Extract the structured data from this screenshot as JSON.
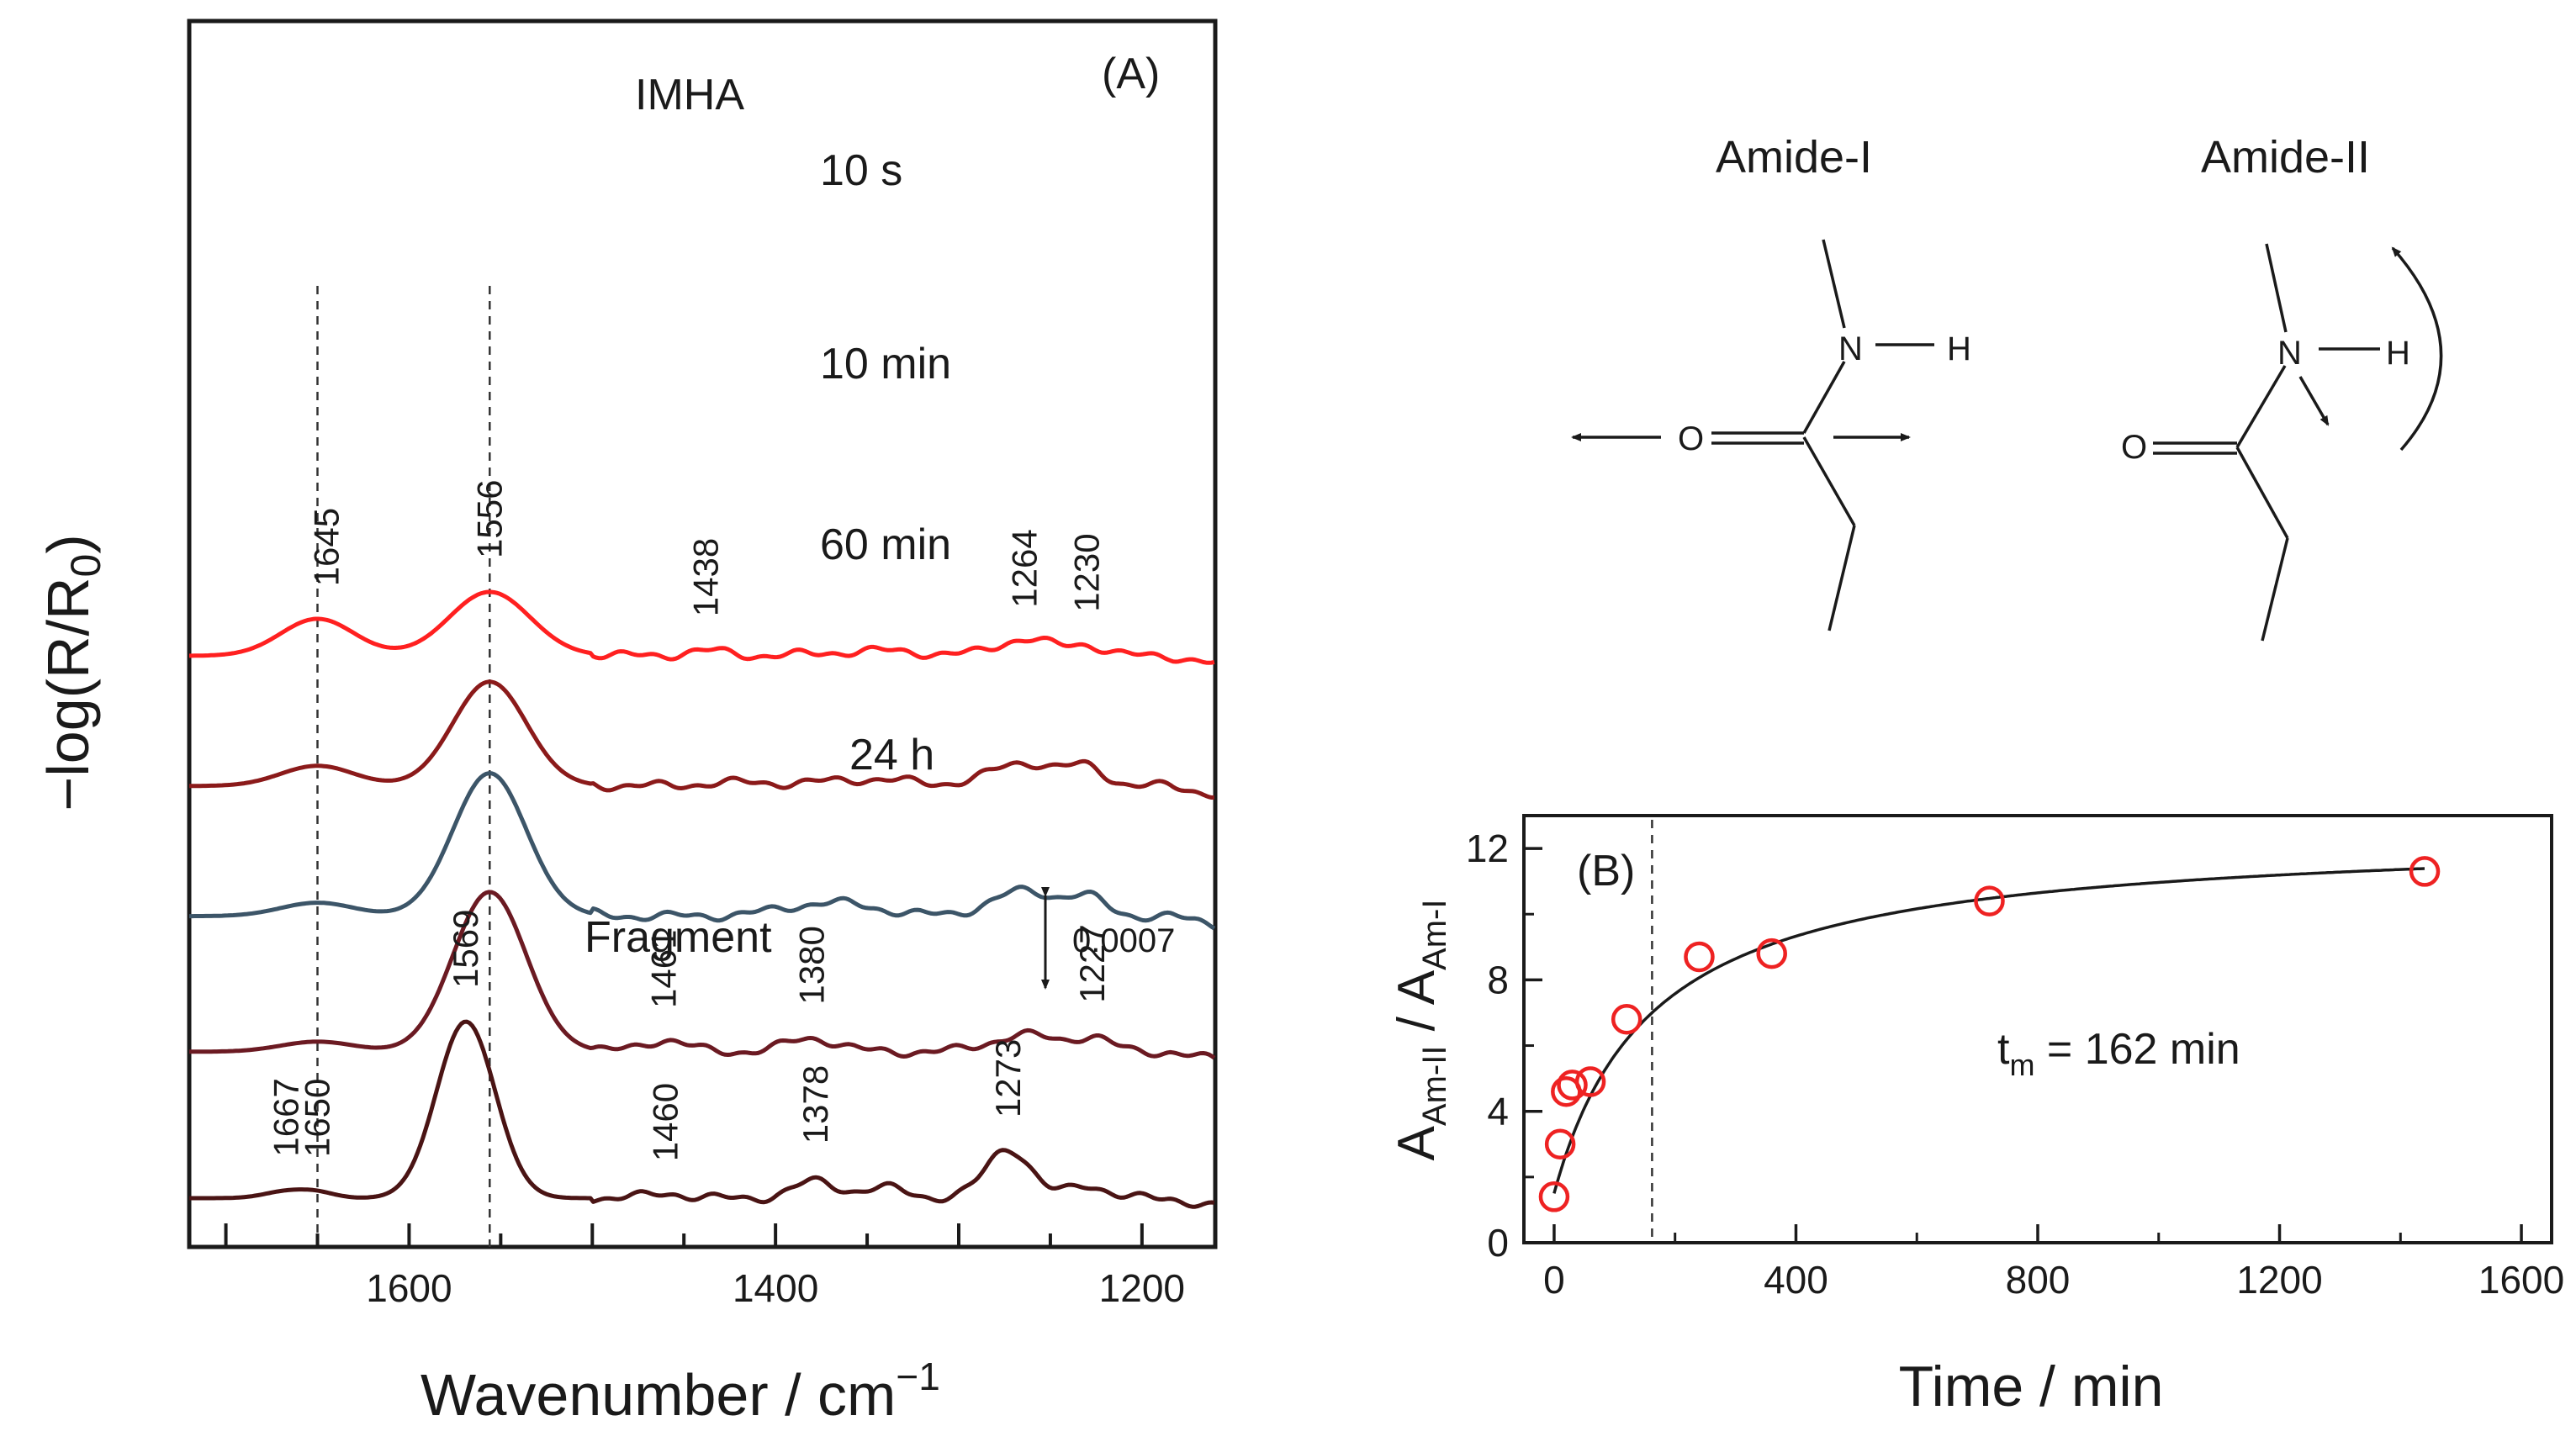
{
  "figure": {
    "panels": [
      "(A)",
      "(B)"
    ]
  },
  "colors": {
    "trace_10s": "#ff2020",
    "trace_10min": "#8b1a1a",
    "trace_60min": "#3c5568",
    "trace_24h": "#6b1a22",
    "trace_fragment": "#4a1414",
    "marker": "#ee2222",
    "ink": "#1a1a1a"
  },
  "scheme": {
    "amide1_title": "Amide-I",
    "amide2_title": "Amide-II",
    "atom_N": "N",
    "atom_H": "H",
    "atom_O": "O"
  },
  "chart_data": [
    {
      "type": "line",
      "panel": "(A)",
      "title": "IMHA",
      "xlabel": "Wavenumber / cm",
      "xlabel_sup": "−1",
      "ylabel": "−log(R/R",
      "ylabel_sub": "0",
      "ylabel_end": ")",
      "xlim": [
        1720,
        1160
      ],
      "xticks": [
        1600,
        1400,
        1200
      ],
      "xtick_labels": [
        "1600",
        "1400",
        "1200"
      ],
      "scale_bar": {
        "label": "0.0007",
        "value": 0.0007
      },
      "reference_lines": [
        1650,
        1556
      ],
      "series": [
        {
          "name": "10 s",
          "color_key": "trace_10s",
          "offset": 5.0,
          "peaks": [
            [
              1650,
              0.22,
              20
            ],
            [
              1556,
              0.38,
              22
            ],
            [
              1438,
              0.03,
              12
            ],
            [
              1345,
              0.03,
              25
            ],
            [
              1264,
              0.1,
              15
            ],
            [
              1230,
              0.06,
              10
            ]
          ],
          "annotations": [
            {
              "x": 1645,
              "label": "1645"
            },
            {
              "x": 1556,
              "label": "1556"
            },
            {
              "x": 1438,
              "label": "1438"
            },
            {
              "x": 1264,
              "label": "1264"
            },
            {
              "x": 1230,
              "label": "1230"
            }
          ]
        },
        {
          "name": "10 min",
          "color_key": "trace_10min",
          "offset": 3.8,
          "peaks": [
            [
              1650,
              0.12,
              20
            ],
            [
              1556,
              0.62,
              20
            ],
            [
              1420,
              0.02,
              20
            ],
            [
              1350,
              0.04,
              25
            ],
            [
              1264,
              0.14,
              18
            ],
            [
              1230,
              0.1,
              10
            ]
          ],
          "annotations": []
        },
        {
          "name": "60 min",
          "color_key": "trace_60min",
          "offset": 2.6,
          "peaks": [
            [
              1650,
              0.08,
              20
            ],
            [
              1556,
              0.85,
              20
            ],
            [
              1370,
              0.08,
              25
            ],
            [
              1264,
              0.15,
              18
            ],
            [
              1230,
              0.1,
              10
            ]
          ],
          "annotations": []
        },
        {
          "name": "24 h",
          "color_key": "trace_24h",
          "offset": 1.35,
          "peaks": [
            [
              1650,
              0.06,
              20
            ],
            [
              1556,
              0.95,
              20
            ],
            [
              1461,
              0.07,
              12
            ],
            [
              1380,
              0.08,
              14
            ],
            [
              1264,
              0.1,
              18
            ],
            [
              1227,
              0.08,
              10
            ]
          ],
          "annotations": [
            {
              "x": 1461,
              "label": "1461"
            },
            {
              "x": 1380,
              "label": "1380"
            },
            {
              "x": 1227,
              "label": "1227"
            }
          ]
        },
        {
          "name": "Fragment",
          "color_key": "trace_fragment",
          "offset": 0.0,
          "peaks": [
            [
              1667,
              0.04,
              12
            ],
            [
              1650,
              0.03,
              10
            ],
            [
              1569,
              1.05,
              16
            ],
            [
              1460,
              0.03,
              10
            ],
            [
              1378,
              0.1,
              12
            ],
            [
              1340,
              0.06,
              12
            ],
            [
              1273,
              0.3,
              12
            ],
            [
              1230,
              0.08,
              10
            ]
          ],
          "annotations": [
            {
              "x": 1667,
              "label": "1667"
            },
            {
              "x": 1650,
              "label": "1650"
            },
            {
              "x": 1569,
              "label": "1569"
            },
            {
              "x": 1460,
              "label": "1460"
            },
            {
              "x": 1378,
              "label": "1378"
            },
            {
              "x": 1273,
              "label": "1273"
            }
          ]
        }
      ]
    },
    {
      "type": "scatter",
      "panel": "(B)",
      "title": "",
      "xlabel": "Time / min",
      "ylabel_parts": [
        "A",
        "Am-II",
        " / A",
        "Am-I"
      ],
      "xlim": [
        -50,
        1650
      ],
      "ylim": [
        0,
        13
      ],
      "xticks": [
        0,
        400,
        800,
        1200,
        1600
      ],
      "yticks": [
        0,
        4,
        8,
        12
      ],
      "x": [
        0,
        10,
        20,
        30,
        60,
        120,
        240,
        360,
        720,
        1440
      ],
      "y": [
        1.4,
        3.0,
        4.6,
        4.8,
        4.9,
        6.8,
        8.7,
        8.8,
        10.4,
        11.3
      ],
      "fit": {
        "type": "hyperbolic",
        "y0": 1.5,
        "amplitude": 11.0,
        "tm": 162
      },
      "reference_line_x": 162,
      "annotation": {
        "prefix": "t",
        "sub": "m",
        "suffix": " = 162 min"
      }
    }
  ]
}
